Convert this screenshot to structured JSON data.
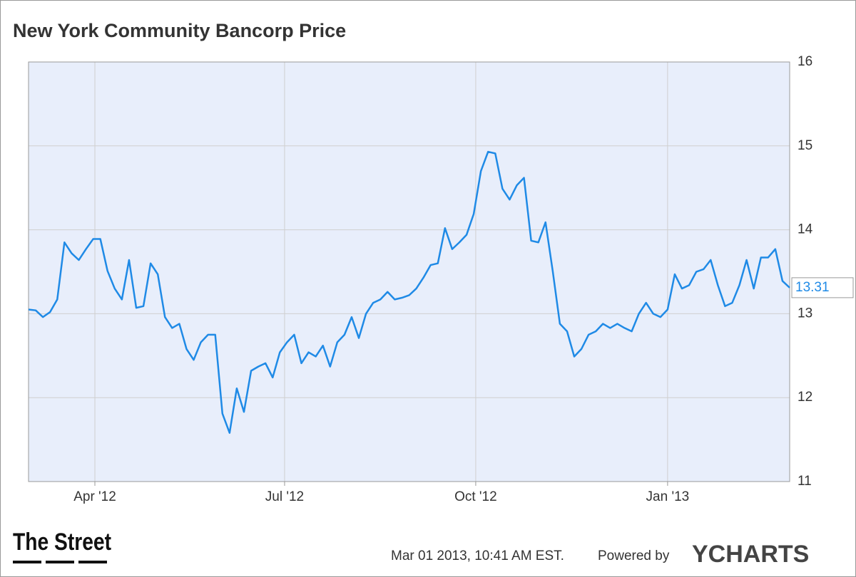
{
  "chart_data": {
    "type": "line",
    "title": "New York Community Bancorp Price",
    "color": "#1f8ae6",
    "values": [
      13.05,
      13.04,
      12.96,
      13.02,
      13.17,
      13.85,
      13.72,
      13.64,
      13.77,
      13.89,
      13.89,
      13.51,
      13.3,
      13.17,
      13.64,
      13.07,
      13.09,
      13.6,
      13.47,
      12.96,
      12.83,
      12.88,
      12.58,
      12.45,
      12.66,
      12.75,
      12.75,
      11.81,
      11.58,
      12.11,
      11.83,
      12.32,
      12.37,
      12.41,
      12.24,
      12.54,
      12.66,
      12.75,
      12.41,
      12.54,
      12.49,
      12.62,
      12.37,
      12.66,
      12.75,
      12.96,
      12.71,
      13.0,
      13.13,
      13.17,
      13.26,
      13.17,
      13.19,
      13.22,
      13.3,
      13.43,
      13.58,
      13.6,
      14.02,
      13.77,
      13.85,
      13.94,
      14.19,
      14.7,
      14.93,
      14.91,
      14.49,
      14.36,
      14.53,
      14.62,
      13.87,
      13.85,
      14.09,
      13.51,
      12.88,
      12.79,
      12.49,
      12.58,
      12.75,
      12.79,
      12.88,
      12.83,
      12.88,
      12.83,
      12.79,
      13.0,
      13.13,
      13.0,
      12.96,
      13.05,
      13.47,
      13.3,
      13.34,
      13.5,
      13.53,
      13.64,
      13.34,
      13.09,
      13.13,
      13.34,
      13.64,
      13.3,
      13.67,
      13.67,
      13.77,
      13.39,
      13.31
    ],
    "xlim": [
      0,
      106
    ],
    "xticks": [
      {
        "value": 9.24,
        "label": "Apr '12"
      },
      {
        "value": 35.66,
        "label": "Jul '12"
      },
      {
        "value": 62.28,
        "label": "Oct '12"
      },
      {
        "value": 89.0,
        "label": "Jan '13"
      }
    ],
    "ylim": [
      11,
      16
    ],
    "yticks": [
      11,
      12,
      13,
      14,
      15,
      16
    ],
    "grid": true
  },
  "footer": {
    "logo": "The Street",
    "timestamp": "Mar 01 2013, 10:41 AM EST.",
    "powered_by": "Powered by",
    "brand": "YCHARTS"
  }
}
